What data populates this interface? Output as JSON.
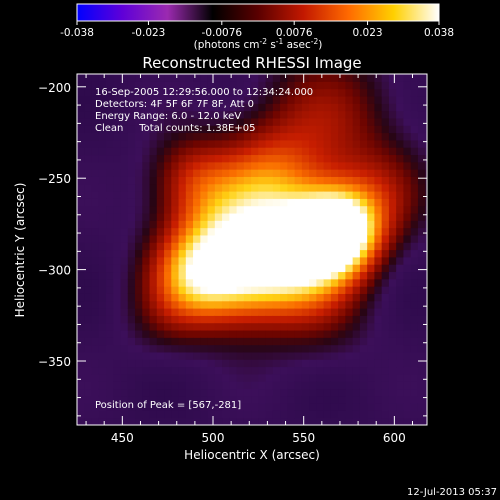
{
  "colorbar": {
    "ticks": [
      "-0.038",
      "-0.023",
      "-0.0076",
      "0.0076",
      "0.023",
      "0.038"
    ],
    "units_main": "(photons cm",
    "units_exp1": "-2",
    "units_mid": " s",
    "units_exp2": "-1",
    "units_tail": " asec",
    "units_exp3": "-2",
    "units_close": ")",
    "gradient_colors": [
      "#0000ff",
      "#5f00d8",
      "#9b2ab0",
      "#000000",
      "#5a0000",
      "#c21800",
      "#ff6a00",
      "#ffd000",
      "#ffffff"
    ]
  },
  "chart_data": {
    "type": "heatmap",
    "title": "Reconstructed RHESSI Image",
    "xlabel": "Heliocentric X (arcsec)",
    "ylabel": "Heliocentric Y (arcsec)",
    "xlim": [
      425,
      618
    ],
    "ylim": [
      -385,
      -193
    ],
    "x_ticks": [
      450,
      500,
      550,
      600
    ],
    "y_ticks": [
      -200,
      -250,
      -300,
      -350
    ],
    "annotations": [
      "16-Sep-2005 12:29:56.000 to 12:34:24.000",
      "Detectors: 4F 5F 6F 7F 8F, Att 0",
      "Energy Range: 6.0 - 12.0 keV",
      "Clean     Total counts: 1.38E+05"
    ],
    "peak_label": "Position of Peak = [567,-281]",
    "peak": [
      567,
      -281
    ],
    "colorbar_range": [
      -0.038,
      0.038
    ],
    "sources": [
      {
        "x": 567,
        "y": -281,
        "sigma": 16,
        "amp": 1.0
      },
      {
        "x": 545,
        "y": -292,
        "sigma": 22,
        "amp": 0.75
      },
      {
        "x": 515,
        "y": -302,
        "sigma": 22,
        "amp": 0.65
      },
      {
        "x": 488,
        "y": -305,
        "sigma": 18,
        "amp": 0.55
      },
      {
        "x": 500,
        "y": -270,
        "sigma": 22,
        "amp": 0.35
      },
      {
        "x": 530,
        "y": -250,
        "sigma": 20,
        "amp": 0.35
      },
      {
        "x": 560,
        "y": -220,
        "sigma": 28,
        "amp": 0.3
      },
      {
        "x": 485,
        "y": -250,
        "sigma": 16,
        "amp": 0.25
      },
      {
        "x": 590,
        "y": -260,
        "sigma": 18,
        "amp": 0.25
      },
      {
        "x": 470,
        "y": -330,
        "sigma": 16,
        "amp": 0.12
      },
      {
        "x": 560,
        "y": -330,
        "sigma": 20,
        "amp": 0.12
      }
    ]
  },
  "timestamp": "12-Jul-2013 05:37"
}
